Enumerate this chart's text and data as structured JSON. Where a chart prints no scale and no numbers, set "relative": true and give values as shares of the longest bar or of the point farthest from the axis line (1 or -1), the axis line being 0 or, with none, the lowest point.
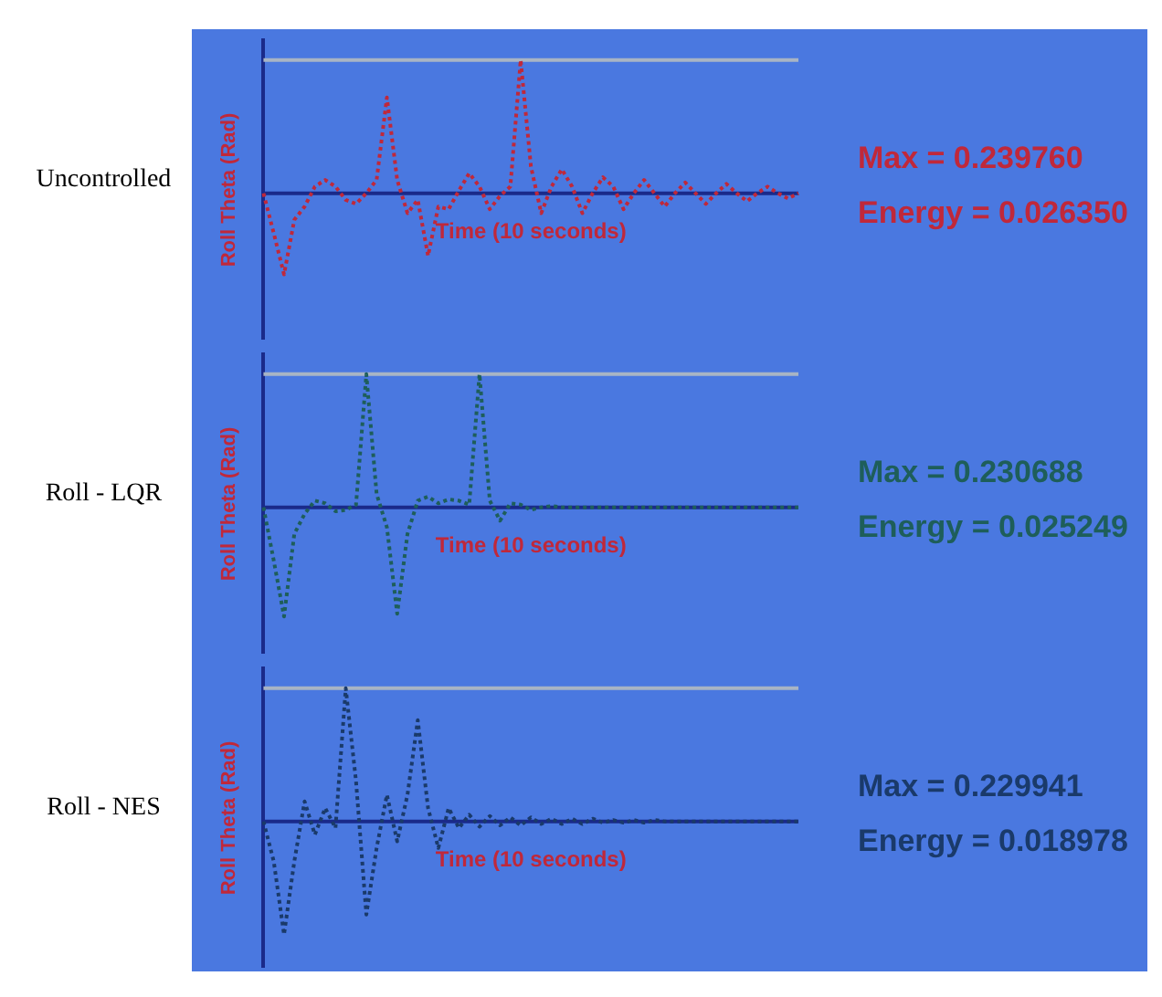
{
  "chart_data": [
    {
      "type": "line",
      "title": "Uncontrolled",
      "ylabel": "Roll Theta (Rad)",
      "xlabel": "Time (10 seconds)",
      "relative": true,
      "line_style": "dotted",
      "annotations": [
        "Max = 0.239760",
        "Energy = 0.026350"
      ],
      "ref_lines": [
        {
          "axis": "y",
          "value": 1,
          "color": "#a8b4c4"
        },
        {
          "axis": "y",
          "value": 0,
          "color": "#1a2a8a"
        }
      ],
      "categories": [
        null,
        null,
        null,
        null,
        null,
        null,
        null,
        null,
        null,
        null,
        null,
        null,
        null,
        null,
        null,
        null,
        null,
        null,
        null,
        null,
        null,
        null,
        null,
        null,
        null,
        null,
        null,
        null,
        null,
        null,
        null,
        null,
        null,
        null,
        null,
        null,
        null,
        null,
        null,
        null,
        null,
        null,
        null,
        null,
        null,
        null,
        null,
        null,
        null,
        null,
        null,
        null,
        null
      ],
      "series": [
        {
          "color": "#c0283a",
          "values": [
            0,
            -0.3,
            -0.61,
            -0.2,
            -0.1,
            0.05,
            0.1,
            0.05,
            -0.05,
            -0.08,
            0,
            0.1,
            0.72,
            0.1,
            -0.15,
            -0.05,
            -0.47,
            -0.1,
            -0.12,
            0.02,
            0.15,
            0.05,
            -0.12,
            -0.02,
            0.05,
            1,
            0.2,
            -0.15,
            0.05,
            0.18,
            0.05,
            -0.15,
            0,
            0.12,
            0.05,
            -0.12,
            0,
            0.1,
            0,
            -0.1,
            0,
            0.08,
            0,
            -0.08,
            0,
            0.07,
            0,
            -0.06,
            0,
            0.05,
            0,
            -0.04,
            0
          ]
        }
      ]
    },
    {
      "type": "line",
      "title": "Roll - LQR",
      "ylabel": "Roll Theta (Rad)",
      "xlabel": "Time (10 seconds)",
      "relative": true,
      "line_style": "dotted",
      "annotations": [
        "Max = 0.230688",
        "Energy = 0.025249"
      ],
      "ref_lines": [
        {
          "axis": "y",
          "value": 1,
          "color": "#a8b4c4"
        },
        {
          "axis": "y",
          "value": 0,
          "color": "#1a2a8a"
        }
      ],
      "categories": [
        null,
        null,
        null,
        null,
        null,
        null,
        null,
        null,
        null,
        null,
        null,
        null,
        null,
        null,
        null,
        null,
        null,
        null,
        null,
        null,
        null,
        null,
        null,
        null,
        null,
        null,
        null,
        null,
        null,
        null,
        null,
        null,
        null,
        null,
        null,
        null,
        null,
        null,
        null,
        null,
        null,
        null,
        null,
        null,
        null,
        null,
        null,
        null,
        null,
        null,
        null,
        null,
        null
      ],
      "series": [
        {
          "color": "#1e5e5a",
          "values": [
            0,
            -0.4,
            -0.82,
            -0.2,
            -0.05,
            0.05,
            0.03,
            -0.03,
            -0.02,
            0.02,
            1,
            0.1,
            -0.15,
            -0.8,
            -0.2,
            0.05,
            0.08,
            0.03,
            0.06,
            0.05,
            0.02,
            1,
            0.05,
            -0.1,
            0.03,
            0.02,
            -0.02,
            0,
            0.01,
            0,
            0,
            0,
            0,
            0,
            0,
            0,
            0,
            0,
            0,
            0,
            0,
            0,
            0,
            0,
            0,
            0,
            0,
            0,
            0,
            0,
            0,
            0,
            0
          ]
        }
      ]
    },
    {
      "type": "line",
      "title": "Roll - NES",
      "ylabel": "Roll Theta (Rad)",
      "xlabel": "Time (10 seconds)",
      "relative": true,
      "line_style": "dotted",
      "annotations": [
        "Max = 0.229941",
        "Energy = 0.018978"
      ],
      "ref_lines": [
        {
          "axis": "y",
          "value": 1,
          "color": "#a8b4c4"
        },
        {
          "axis": "y",
          "value": 0,
          "color": "#1a2a8a"
        }
      ],
      "categories": [
        null,
        null,
        null,
        null,
        null,
        null,
        null,
        null,
        null,
        null,
        null,
        null,
        null,
        null,
        null,
        null,
        null,
        null,
        null,
        null,
        null,
        null,
        null,
        null,
        null,
        null,
        null,
        null,
        null,
        null,
        null,
        null,
        null,
        null,
        null,
        null,
        null,
        null,
        null,
        null,
        null,
        null,
        null,
        null,
        null,
        null,
        null,
        null,
        null,
        null,
        null,
        null,
        null
      ],
      "series": [
        {
          "color": "#1a3a6a",
          "values": [
            0,
            -0.3,
            -0.85,
            -0.3,
            0.15,
            -0.1,
            0.1,
            -0.05,
            1,
            0.3,
            -0.7,
            -0.2,
            0.2,
            -0.15,
            0.2,
            0.76,
            0.1,
            -0.2,
            0.1,
            -0.05,
            0.05,
            -0.04,
            0.04,
            -0.03,
            0.03,
            -0.03,
            0.03,
            -0.02,
            0.02,
            -0.02,
            0.02,
            -0.02,
            0.02,
            -0.01,
            0.01,
            -0.01,
            0.01,
            -0.01,
            0.01,
            0,
            0,
            0,
            0,
            0,
            0,
            0,
            0,
            0,
            0,
            0,
            0,
            0,
            0
          ]
        }
      ]
    }
  ]
}
